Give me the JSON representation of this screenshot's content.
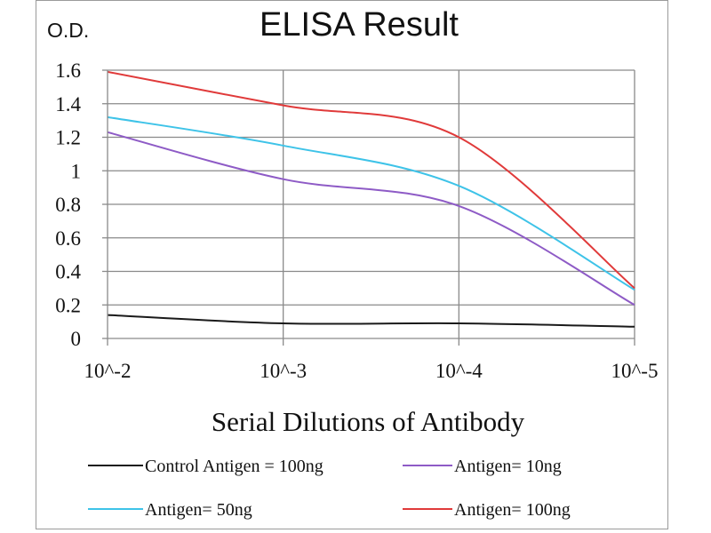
{
  "chart_data": {
    "type": "line",
    "title": "ELISA Result",
    "ylabel": "O.D.",
    "xlabel": "Serial Dilutions  of Antibody",
    "categories": [
      "10^-2",
      "10^-3",
      "10^-4",
      "10^-5"
    ],
    "y_ticks": [
      "0",
      "0.2",
      "0.4",
      "0.6",
      "0.8",
      "1",
      "1.2",
      "1.4",
      "1.6"
    ],
    "ylim": [
      0,
      1.6
    ],
    "grid": true,
    "legend_position": "bottom",
    "series": [
      {
        "name": "Control Antigen = 100ng",
        "color": "#1a1a1a",
        "values": [
          0.14,
          0.09,
          0.09,
          0.07
        ]
      },
      {
        "name": "Antigen= 10ng",
        "color": "#8e5bc6",
        "values": [
          1.23,
          0.95,
          0.79,
          0.2
        ]
      },
      {
        "name": "Antigen= 50ng",
        "color": "#3ec3e8",
        "values": [
          1.32,
          1.15,
          0.91,
          0.29
        ]
      },
      {
        "name": "Antigen= 100ng",
        "color": "#e03a3a",
        "values": [
          1.59,
          1.39,
          1.2,
          0.3
        ]
      }
    ]
  }
}
